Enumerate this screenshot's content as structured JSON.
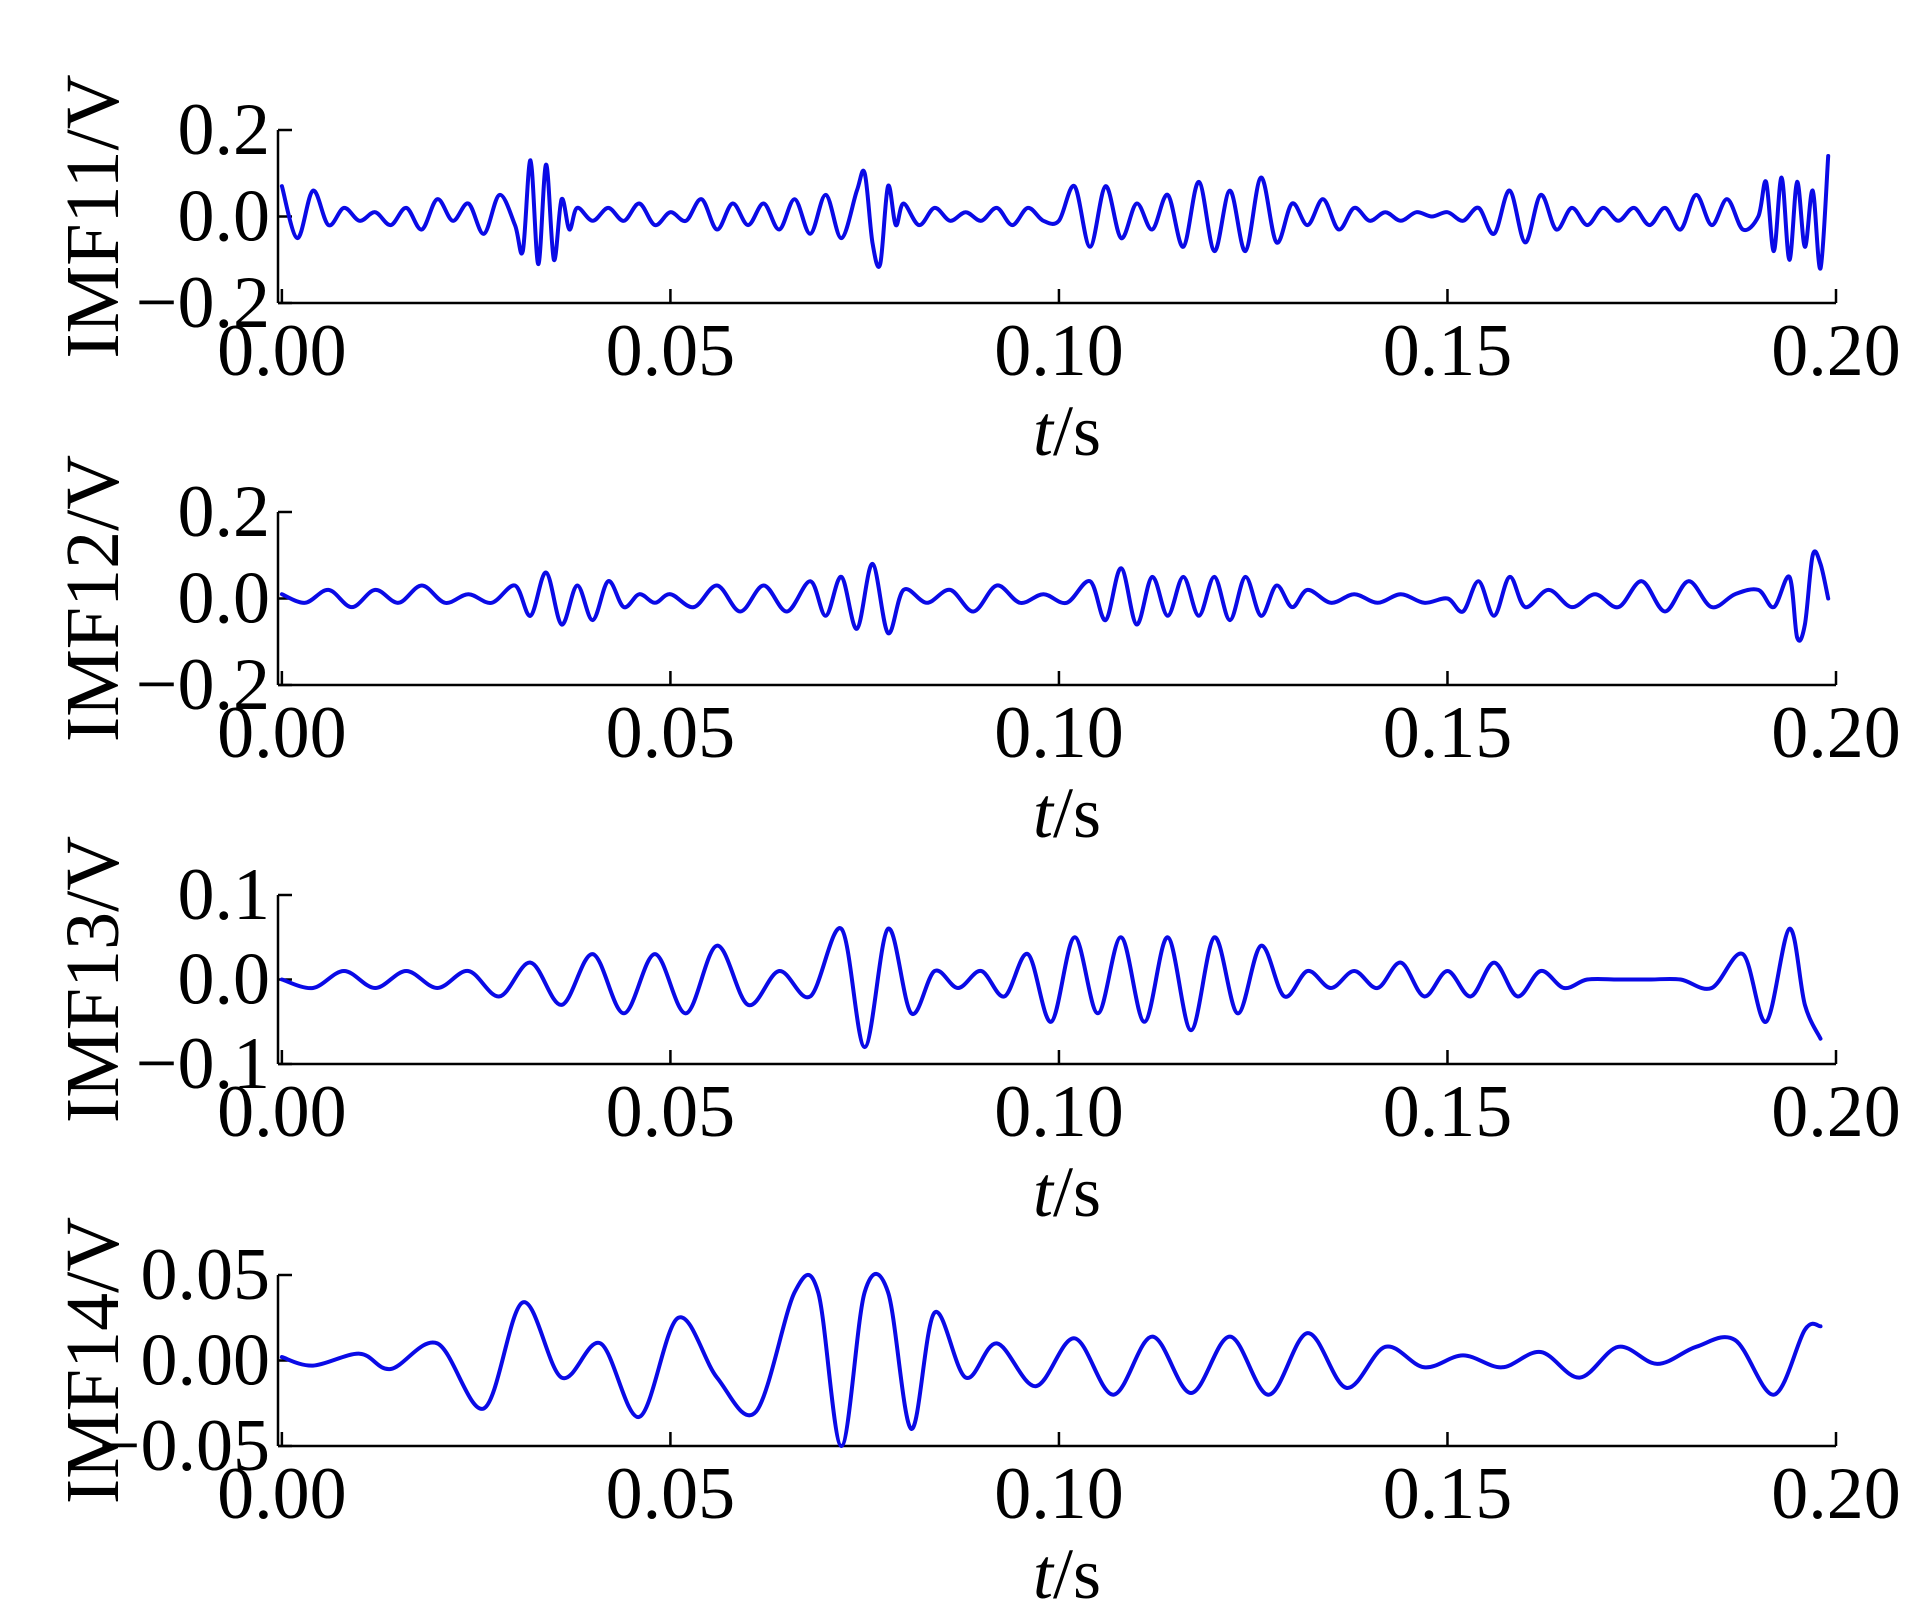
{
  "chart_data": [
    {
      "type": "line",
      "ylabel": "IMF11/V",
      "xlabel_italic": "t",
      "xlabel_unit": "/s",
      "xlim": [
        -0.0005,
        0.2
      ],
      "ylim": [
        -0.2,
        0.2
      ],
      "xticks": [
        0.0,
        0.05,
        0.1,
        0.15,
        0.2
      ],
      "xtick_labels": [
        "0.00",
        "0.05",
        "0.10",
        "0.15",
        "0.20"
      ],
      "yticks": [
        -0.2,
        0.0,
        0.2
      ],
      "ytick_labels": [
        "−0.2",
        "0.0",
        "0.2"
      ],
      "grid": false,
      "color": "#0a0ae6",
      "series": [
        {
          "x": [
            0.0,
            0.002,
            0.004,
            0.006,
            0.008,
            0.01,
            0.012,
            0.014,
            0.016,
            0.018,
            0.02,
            0.022,
            0.024,
            0.026,
            0.028,
            0.03,
            0.031,
            0.032,
            0.033,
            0.034,
            0.035,
            0.036,
            0.037,
            0.038,
            0.04,
            0.042,
            0.044,
            0.046,
            0.048,
            0.05,
            0.052,
            0.054,
            0.056,
            0.058,
            0.06,
            0.062,
            0.064,
            0.066,
            0.068,
            0.07,
            0.072,
            0.074,
            0.075,
            0.076,
            0.077,
            0.078,
            0.079,
            0.08,
            0.082,
            0.084,
            0.086,
            0.088,
            0.09,
            0.092,
            0.094,
            0.096,
            0.098,
            0.1,
            0.102,
            0.104,
            0.106,
            0.108,
            0.11,
            0.112,
            0.114,
            0.116,
            0.118,
            0.12,
            0.122,
            0.124,
            0.126,
            0.128,
            0.13,
            0.132,
            0.134,
            0.136,
            0.138,
            0.14,
            0.142,
            0.144,
            0.146,
            0.148,
            0.15,
            0.152,
            0.154,
            0.156,
            0.158,
            0.16,
            0.162,
            0.164,
            0.166,
            0.168,
            0.17,
            0.172,
            0.174,
            0.176,
            0.178,
            0.18,
            0.182,
            0.184,
            0.186,
            0.188,
            0.19,
            0.191,
            0.192,
            0.193,
            0.194,
            0.195,
            0.196,
            0.197,
            0.198,
            0.199
          ],
          "y": [
            0.07,
            -0.05,
            0.06,
            -0.02,
            0.02,
            -0.01,
            0.01,
            -0.02,
            0.02,
            -0.03,
            0.04,
            -0.01,
            0.03,
            -0.04,
            0.05,
            -0.02,
            -0.08,
            0.13,
            -0.11,
            0.12,
            -0.1,
            0.04,
            -0.03,
            0.02,
            -0.01,
            0.02,
            -0.01,
            0.03,
            -0.02,
            0.01,
            -0.01,
            0.04,
            -0.03,
            0.03,
            -0.02,
            0.03,
            -0.03,
            0.04,
            -0.04,
            0.05,
            -0.05,
            0.06,
            0.1,
            -0.06,
            -0.11,
            0.07,
            -0.02,
            0.03,
            -0.02,
            0.02,
            -0.01,
            0.01,
            -0.01,
            0.02,
            -0.02,
            0.02,
            -0.01,
            -0.01,
            0.07,
            -0.07,
            0.07,
            -0.05,
            0.03,
            -0.03,
            0.05,
            -0.07,
            0.08,
            -0.08,
            0.06,
            -0.08,
            0.09,
            -0.06,
            0.03,
            -0.02,
            0.04,
            -0.03,
            0.02,
            -0.01,
            0.01,
            -0.01,
            0.01,
            0.0,
            0.01,
            -0.01,
            0.02,
            -0.04,
            0.06,
            -0.06,
            0.05,
            -0.03,
            0.02,
            -0.02,
            0.02,
            -0.01,
            0.02,
            -0.02,
            0.02,
            -0.03,
            0.05,
            -0.02,
            0.04,
            -0.03,
            0.0,
            0.08,
            -0.08,
            0.09,
            -0.1,
            0.08,
            -0.07,
            0.06,
            -0.12,
            0.14
          ]
        }
      ]
    },
    {
      "type": "line",
      "ylabel": "IMF12/V",
      "xlabel_italic": "t",
      "xlabel_unit": "/s",
      "xlim": [
        -0.0005,
        0.2
      ],
      "ylim": [
        -0.2,
        0.2
      ],
      "xticks": [
        0.0,
        0.05,
        0.1,
        0.15,
        0.2
      ],
      "xtick_labels": [
        "0.00",
        "0.05",
        "0.10",
        "0.15",
        "0.20"
      ],
      "yticks": [
        -0.2,
        0.0,
        0.2
      ],
      "ytick_labels": [
        "−0.2",
        "0.0",
        "0.2"
      ],
      "grid": false,
      "color": "#0a0ae6",
      "series": [
        {
          "x": [
            0.0,
            0.003,
            0.006,
            0.009,
            0.012,
            0.015,
            0.018,
            0.021,
            0.024,
            0.027,
            0.03,
            0.032,
            0.034,
            0.036,
            0.038,
            0.04,
            0.042,
            0.044,
            0.046,
            0.048,
            0.05,
            0.053,
            0.056,
            0.059,
            0.062,
            0.065,
            0.068,
            0.07,
            0.072,
            0.074,
            0.076,
            0.078,
            0.08,
            0.083,
            0.086,
            0.089,
            0.092,
            0.095,
            0.098,
            0.101,
            0.104,
            0.106,
            0.108,
            0.11,
            0.112,
            0.114,
            0.116,
            0.118,
            0.12,
            0.122,
            0.124,
            0.126,
            0.128,
            0.13,
            0.132,
            0.135,
            0.138,
            0.141,
            0.144,
            0.147,
            0.15,
            0.152,
            0.154,
            0.156,
            0.158,
            0.16,
            0.163,
            0.166,
            0.169,
            0.172,
            0.175,
            0.178,
            0.181,
            0.184,
            0.187,
            0.19,
            0.192,
            0.194,
            0.195,
            0.196,
            0.197,
            0.198,
            0.199
          ],
          "y": [
            0.01,
            -0.01,
            0.02,
            -0.02,
            0.02,
            -0.01,
            0.03,
            -0.01,
            0.01,
            -0.01,
            0.03,
            -0.04,
            0.06,
            -0.06,
            0.03,
            -0.05,
            0.04,
            -0.02,
            0.01,
            -0.01,
            0.01,
            -0.02,
            0.03,
            -0.03,
            0.03,
            -0.03,
            0.04,
            -0.04,
            0.05,
            -0.07,
            0.08,
            -0.08,
            0.02,
            -0.01,
            0.02,
            -0.03,
            0.03,
            -0.01,
            0.01,
            -0.01,
            0.04,
            -0.05,
            0.07,
            -0.06,
            0.05,
            -0.04,
            0.05,
            -0.04,
            0.05,
            -0.05,
            0.05,
            -0.04,
            0.03,
            -0.02,
            0.02,
            -0.01,
            0.01,
            -0.01,
            0.01,
            -0.01,
            0.0,
            -0.03,
            0.04,
            -0.04,
            0.05,
            -0.02,
            0.02,
            -0.02,
            0.01,
            -0.02,
            0.04,
            -0.03,
            0.04,
            -0.02,
            0.01,
            0.02,
            -0.02,
            0.05,
            -0.09,
            -0.06,
            0.1,
            0.08,
            0.0
          ]
        }
      ]
    },
    {
      "type": "line",
      "ylabel": "IMF13/V",
      "xlabel_italic": "t",
      "xlabel_unit": "/s",
      "xlim": [
        -0.0005,
        0.2
      ],
      "ylim": [
        -0.1,
        0.1
      ],
      "xticks": [
        0.0,
        0.05,
        0.1,
        0.15,
        0.2
      ],
      "xtick_labels": [
        "0.00",
        "0.05",
        "0.10",
        "0.15",
        "0.20"
      ],
      "yticks": [
        -0.1,
        0.0,
        0.1
      ],
      "ytick_labels": [
        "−0.1",
        "0.0",
        "0.1"
      ],
      "grid": false,
      "color": "#0a0ae6",
      "series": [
        {
          "x": [
            0.0,
            0.004,
            0.008,
            0.012,
            0.016,
            0.02,
            0.024,
            0.028,
            0.032,
            0.036,
            0.04,
            0.044,
            0.048,
            0.052,
            0.056,
            0.06,
            0.064,
            0.068,
            0.072,
            0.075,
            0.078,
            0.081,
            0.084,
            0.087,
            0.09,
            0.093,
            0.096,
            0.099,
            0.102,
            0.105,
            0.108,
            0.111,
            0.114,
            0.117,
            0.12,
            0.123,
            0.126,
            0.129,
            0.132,
            0.135,
            0.138,
            0.141,
            0.144,
            0.147,
            0.15,
            0.153,
            0.156,
            0.159,
            0.162,
            0.165,
            0.168,
            0.172,
            0.176,
            0.18,
            0.184,
            0.188,
            0.191,
            0.194,
            0.196,
            0.198
          ],
          "y": [
            0.0,
            -0.01,
            0.01,
            -0.01,
            0.01,
            -0.01,
            0.01,
            -0.02,
            0.02,
            -0.03,
            0.03,
            -0.04,
            0.03,
            -0.04,
            0.04,
            -0.03,
            0.01,
            -0.02,
            0.06,
            -0.08,
            0.06,
            -0.04,
            0.01,
            -0.01,
            0.01,
            -0.02,
            0.03,
            -0.05,
            0.05,
            -0.04,
            0.05,
            -0.05,
            0.05,
            -0.06,
            0.05,
            -0.04,
            0.04,
            -0.02,
            0.01,
            -0.01,
            0.01,
            -0.01,
            0.02,
            -0.02,
            0.01,
            -0.02,
            0.02,
            -0.02,
            0.01,
            -0.01,
            0.0,
            0.0,
            0.0,
            0.0,
            -0.01,
            0.03,
            -0.05,
            0.06,
            -0.03,
            -0.07
          ]
        }
      ]
    },
    {
      "type": "line",
      "ylabel": "IMF14/V",
      "xlabel_italic": "t",
      "xlabel_unit": "/s",
      "xlim": [
        -0.0005,
        0.2
      ],
      "ylim": [
        -0.05,
        0.05
      ],
      "xticks": [
        0.0,
        0.05,
        0.1,
        0.15,
        0.2
      ],
      "xtick_labels": [
        "0.00",
        "0.05",
        "0.10",
        "0.15",
        "0.20"
      ],
      "yticks": [
        -0.05,
        0.0,
        0.05
      ],
      "ytick_labels": [
        "−0.05",
        "0.00",
        "0.05"
      ],
      "grid": false,
      "color": "#0a0ae6",
      "series": [
        {
          "x": [
            0.0,
            0.004,
            0.01,
            0.014,
            0.02,
            0.026,
            0.031,
            0.036,
            0.041,
            0.046,
            0.051,
            0.056,
            0.061,
            0.066,
            0.069,
            0.072,
            0.075,
            0.078,
            0.081,
            0.084,
            0.088,
            0.092,
            0.097,
            0.102,
            0.107,
            0.112,
            0.117,
            0.122,
            0.127,
            0.132,
            0.137,
            0.142,
            0.147,
            0.152,
            0.157,
            0.162,
            0.167,
            0.172,
            0.177,
            0.182,
            0.187,
            0.192,
            0.196,
            0.198
          ],
          "y": [
            0.002,
            -0.003,
            0.004,
            -0.005,
            0.01,
            -0.028,
            0.034,
            -0.01,
            0.01,
            -0.033,
            0.025,
            -0.01,
            -0.03,
            0.04,
            0.04,
            -0.05,
            0.04,
            0.04,
            -0.04,
            0.028,
            -0.01,
            0.01,
            -0.015,
            0.013,
            -0.02,
            0.014,
            -0.019,
            0.014,
            -0.02,
            0.016,
            -0.016,
            0.008,
            -0.004,
            0.003,
            -0.004,
            0.005,
            -0.01,
            0.008,
            -0.002,
            0.008,
            0.012,
            -0.02,
            0.018,
            0.02
          ]
        }
      ]
    }
  ]
}
